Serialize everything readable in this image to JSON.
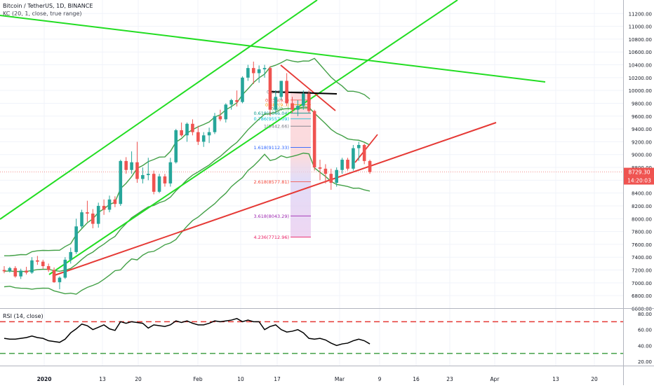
{
  "chart_data": [
    {
      "type": "candlestick",
      "title": "Bitcoin / TetherUS, 1D, BINANCE",
      "indicator": "KC (20, 1, close, true range)",
      "ylim": [
        6400,
        11400
      ],
      "y_ticks": [
        "11200.00",
        "11000.00",
        "10800.00",
        "10600.00",
        "10400.00",
        "10200.00",
        "10000.00",
        "9800.00",
        "9600.00",
        "9400.00",
        "9200.00",
        "9000.00",
        "8800.00",
        "8600.00",
        "8400.00",
        "8200.00",
        "8000.00",
        "7800.00",
        "7600.00",
        "7400.00",
        "7200.00",
        "7000.00",
        "6800.00",
        "6600.00"
      ],
      "x_ticks": [
        "2020",
        "13",
        "20",
        "Feb",
        "10",
        "17",
        "Mar",
        "9",
        "16",
        "23",
        "Apr",
        "13",
        "20"
      ],
      "price_label": "8729.30",
      "time_label": "14:20:03",
      "colors": {
        "up": "#26a69a",
        "down": "#ef5350",
        "keltner": "#43a047",
        "channel": "#22dd22",
        "support": "#e53935"
      },
      "fib_levels": [
        {
          "label": "0(9977.9)",
          "value": 9977.9,
          "color": "#787b86"
        },
        {
          "label": "0.236(9...)",
          "value": 9850,
          "color": "#f44336"
        },
        {
          "label": "0.382(9...)",
          "value": 9780,
          "color": "#ff9800"
        },
        {
          "label": "0.5(9...)",
          "value": 9720,
          "color": "#4caf50"
        },
        {
          "label": "0.618(9646.04)",
          "value": 9646.04,
          "color": "#009688"
        },
        {
          "label": "0.786(9557.09)",
          "value": 9557.09,
          "color": "#00bcd4"
        },
        {
          "label": "1(9442.66)",
          "value": 9442.66,
          "color": "#787b86"
        },
        {
          "label": "1.618(9112.33)",
          "value": 9112.33,
          "color": "#2962ff"
        },
        {
          "label": "2.618(8577.81)",
          "value": 8577.81,
          "color": "#f44336"
        },
        {
          "label": "3.618(8043.29)",
          "value": 8043.29,
          "color": "#9c27b0"
        },
        {
          "label": "4.236(7712.96)",
          "value": 7712.96,
          "color": "#e91e63"
        }
      ],
      "candles": [
        {
          "o": 7200,
          "h": 7260,
          "l": 7150,
          "c": 7180
        },
        {
          "o": 7180,
          "h": 7250,
          "l": 7160,
          "c": 7230
        },
        {
          "o": 7230,
          "h": 7260,
          "l": 7080,
          "c": 7100
        },
        {
          "o": 7100,
          "h": 7220,
          "l": 7060,
          "c": 7190
        },
        {
          "o": 7190,
          "h": 7250,
          "l": 7130,
          "c": 7160
        },
        {
          "o": 7160,
          "h": 7400,
          "l": 7140,
          "c": 7350
        },
        {
          "o": 7350,
          "h": 7420,
          "l": 7280,
          "c": 7330
        },
        {
          "o": 7330,
          "h": 7360,
          "l": 7220,
          "c": 7260
        },
        {
          "o": 7260,
          "h": 7300,
          "l": 7170,
          "c": 7200
        },
        {
          "o": 7200,
          "h": 7240,
          "l": 7000,
          "c": 7010
        },
        {
          "o": 7010,
          "h": 7100,
          "l": 6900,
          "c": 7080
        },
        {
          "o": 7080,
          "h": 7400,
          "l": 7060,
          "c": 7360
        },
        {
          "o": 7360,
          "h": 7550,
          "l": 7300,
          "c": 7480
        },
        {
          "o": 7480,
          "h": 8000,
          "l": 7450,
          "c": 7880
        },
        {
          "o": 7880,
          "h": 8140,
          "l": 7850,
          "c": 8100
        },
        {
          "o": 8100,
          "h": 8280,
          "l": 7950,
          "c": 8080
        },
        {
          "o": 8080,
          "h": 8150,
          "l": 7850,
          "c": 7920
        },
        {
          "o": 7920,
          "h": 8250,
          "l": 7860,
          "c": 8200
        },
        {
          "o": 8200,
          "h": 8300,
          "l": 8060,
          "c": 8140
        },
        {
          "o": 8140,
          "h": 8360,
          "l": 8100,
          "c": 8300
        },
        {
          "o": 8300,
          "h": 8350,
          "l": 8180,
          "c": 8230
        },
        {
          "o": 8230,
          "h": 8920,
          "l": 8200,
          "c": 8900
        },
        {
          "o": 8900,
          "h": 8960,
          "l": 8700,
          "c": 8760
        },
        {
          "o": 8760,
          "h": 9050,
          "l": 8700,
          "c": 8880
        },
        {
          "o": 8880,
          "h": 9200,
          "l": 8560,
          "c": 8620
        },
        {
          "o": 8620,
          "h": 8800,
          "l": 8550,
          "c": 8680
        },
        {
          "o": 8680,
          "h": 8950,
          "l": 8600,
          "c": 8700
        },
        {
          "o": 8700,
          "h": 8750,
          "l": 8380,
          "c": 8420
        },
        {
          "o": 8420,
          "h": 8700,
          "l": 8400,
          "c": 8660
        },
        {
          "o": 8660,
          "h": 8700,
          "l": 8500,
          "c": 8550
        },
        {
          "o": 8550,
          "h": 8950,
          "l": 8500,
          "c": 8880
        },
        {
          "o": 8880,
          "h": 9400,
          "l": 8860,
          "c": 9380
        },
        {
          "o": 9380,
          "h": 9500,
          "l": 9280,
          "c": 9300
        },
        {
          "o": 9300,
          "h": 9500,
          "l": 9200,
          "c": 9480
        },
        {
          "o": 9480,
          "h": 9550,
          "l": 9300,
          "c": 9350
        },
        {
          "o": 9350,
          "h": 9450,
          "l": 9150,
          "c": 9200
        },
        {
          "o": 9200,
          "h": 9350,
          "l": 9120,
          "c": 9300
        },
        {
          "o": 9300,
          "h": 9420,
          "l": 9180,
          "c": 9350
        },
        {
          "o": 9350,
          "h": 9650,
          "l": 9320,
          "c": 9600
        },
        {
          "o": 9600,
          "h": 9700,
          "l": 9520,
          "c": 9550
        },
        {
          "o": 9550,
          "h": 9800,
          "l": 9500,
          "c": 9780
        },
        {
          "o": 9780,
          "h": 9870,
          "l": 9700,
          "c": 9850
        },
        {
          "o": 9850,
          "h": 10000,
          "l": 9750,
          "c": 9820
        },
        {
          "o": 9820,
          "h": 10220,
          "l": 9800,
          "c": 10200
        },
        {
          "o": 10200,
          "h": 10400,
          "l": 10150,
          "c": 10350
        },
        {
          "o": 10350,
          "h": 10450,
          "l": 10100,
          "c": 10270
        },
        {
          "o": 10270,
          "h": 10390,
          "l": 10120,
          "c": 10330
        },
        {
          "o": 10330,
          "h": 10400,
          "l": 10200,
          "c": 10350
        },
        {
          "o": 10350,
          "h": 10380,
          "l": 9600,
          "c": 9700
        },
        {
          "o": 9700,
          "h": 10000,
          "l": 9650,
          "c": 9900
        },
        {
          "o": 9900,
          "h": 10150,
          "l": 9850,
          "c": 10150
        },
        {
          "o": 10150,
          "h": 10270,
          "l": 9760,
          "c": 9800
        },
        {
          "o": 9800,
          "h": 9900,
          "l": 9650,
          "c": 9700
        },
        {
          "o": 9700,
          "h": 9850,
          "l": 9600,
          "c": 9760
        },
        {
          "o": 9760,
          "h": 10000,
          "l": 9700,
          "c": 9950
        },
        {
          "o": 9950,
          "h": 10000,
          "l": 9650,
          "c": 9680
        },
        {
          "o": 9680,
          "h": 9700,
          "l": 8750,
          "c": 8800
        },
        {
          "o": 8800,
          "h": 8920,
          "l": 8600,
          "c": 8780
        },
        {
          "o": 8780,
          "h": 8850,
          "l": 8550,
          "c": 8700
        },
        {
          "o": 8700,
          "h": 8780,
          "l": 8450,
          "c": 8560
        },
        {
          "o": 8560,
          "h": 8800,
          "l": 8500,
          "c": 8760
        },
        {
          "o": 8760,
          "h": 8950,
          "l": 8700,
          "c": 8920
        },
        {
          "o": 8920,
          "h": 8950,
          "l": 8750,
          "c": 8780
        },
        {
          "o": 8780,
          "h": 9150,
          "l": 8750,
          "c": 9100
        },
        {
          "o": 9100,
          "h": 9200,
          "l": 8900,
          "c": 9150
        },
        {
          "o": 9150,
          "h": 9170,
          "l": 8850,
          "c": 8900
        },
        {
          "o": 8900,
          "h": 8920,
          "l": 8700,
          "c": 8729
        }
      ],
      "rsi": {
        "title": "RSI (14, close)",
        "ylim": [
          10,
          90
        ],
        "y_ticks": [
          "80.00",
          "60.00",
          "40.00",
          "20.00"
        ],
        "upper": 70,
        "lower": 30,
        "values": [
          49,
          48,
          48,
          49,
          50,
          52,
          50,
          49,
          46,
          45,
          44,
          48,
          56,
          61,
          67,
          65,
          60,
          63,
          66,
          61,
          59,
          70,
          68,
          70,
          69,
          68,
          62,
          66,
          65,
          64,
          66,
          71,
          69,
          71,
          68,
          66,
          66,
          68,
          71,
          70,
          71,
          72,
          74,
          70,
          72,
          70,
          70,
          60,
          64,
          66,
          60,
          57,
          58,
          60,
          56,
          49,
          48,
          49,
          47,
          43,
          40,
          42,
          43,
          46,
          48,
          46,
          42
        ]
      }
    }
  ]
}
